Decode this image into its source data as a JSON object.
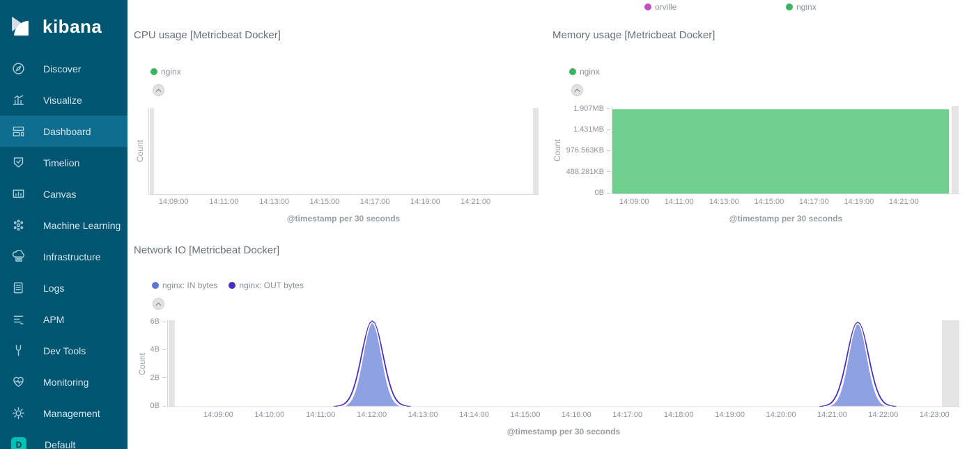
{
  "colors": {
    "sidebar_bg": "#005571",
    "sidebar_selected_bg": "#0c6d8e",
    "sidebar_text": "#d3e5ec",
    "sidebar_icon": "#a9cfdd",
    "accent_teal": "#00bfb3",
    "panel_title": "#6a717d",
    "legend_text": "#8b9099",
    "axis_text": "#8e939b",
    "axis_line": "#d8dbde",
    "partial_bucket": "#e4e4e4",
    "series_green": "#3ab45e",
    "series_green_fill": "#71cf8e",
    "series_in_blue": "#5b74d6",
    "series_out_purple": "#4a2dc1",
    "series_orville": "#c44fc4"
  },
  "sidebar": {
    "logo_text": "kibana",
    "items": [
      {
        "label": "Discover",
        "icon": "discover-icon",
        "selected": false
      },
      {
        "label": "Visualize",
        "icon": "visualize-icon",
        "selected": false
      },
      {
        "label": "Dashboard",
        "icon": "dashboard-icon",
        "selected": true
      },
      {
        "label": "Timelion",
        "icon": "timelion-icon",
        "selected": false
      },
      {
        "label": "Canvas",
        "icon": "canvas-icon",
        "selected": false
      },
      {
        "label": "Machine Learning",
        "icon": "machine-learning-icon",
        "selected": false
      },
      {
        "label": "Infrastructure",
        "icon": "infrastructure-icon",
        "selected": false
      },
      {
        "label": "Logs",
        "icon": "logs-icon",
        "selected": false
      },
      {
        "label": "APM",
        "icon": "apm-icon",
        "selected": false
      },
      {
        "label": "Dev Tools",
        "icon": "dev-tools-icon",
        "selected": false
      },
      {
        "label": "Monitoring",
        "icon": "monitoring-icon",
        "selected": false
      },
      {
        "label": "Management",
        "icon": "management-icon",
        "selected": false
      },
      {
        "label": "Default",
        "icon": "default-space-badge",
        "selected": false,
        "badge": "D"
      }
    ]
  },
  "top_legend": {
    "items": [
      {
        "label": "orville",
        "color": "#c44fc4"
      },
      {
        "label": "nginx",
        "color": "#3ab45e"
      }
    ]
  },
  "chart_data": [
    {
      "id": "cpu",
      "type": "area",
      "title": "CPU usage [Metricbeat Docker]",
      "ylabel": "Count",
      "xlabel": "@timestamp per 30 seconds",
      "legend": [
        {
          "label": "nginx",
          "color": "#3ab45e"
        }
      ],
      "x_range": [
        "14:08:00",
        "14:23:30"
      ],
      "x_ticks": [
        "14:09:00",
        "14:11:00",
        "14:13:00",
        "14:15:00",
        "14:17:00",
        "14:19:00",
        "14:21:00"
      ],
      "y_ticks": [],
      "ylim": [
        0,
        1
      ],
      "series": [
        {
          "name": "nginx",
          "color": "#3ab45e",
          "values": []
        }
      ],
      "note": "no data rendered in visible range"
    },
    {
      "id": "memory",
      "type": "area",
      "title": "Memory usage [Metricbeat Docker]",
      "ylabel": "Count",
      "xlabel": "@timestamp per 30 seconds",
      "legend": [
        {
          "label": "nginx",
          "color": "#3ab45e"
        }
      ],
      "x_range": [
        "14:08:00",
        "14:23:30"
      ],
      "x_ticks": [
        "14:09:00",
        "14:11:00",
        "14:13:00",
        "14:15:00",
        "14:17:00",
        "14:19:00",
        "14:21:00"
      ],
      "ylim_bytes": [
        0,
        2080000
      ],
      "y_ticks": [
        {
          "label": "1.907MB",
          "bytes": 2000000
        },
        {
          "label": "1.431MB",
          "bytes": 1500000
        },
        {
          "label": "976.563KB",
          "bytes": 1000000
        },
        {
          "label": "488.281KB",
          "bytes": 500000
        },
        {
          "label": "0B",
          "bytes": 0
        }
      ],
      "series": [
        {
          "name": "nginx",
          "color": "#71cf8e",
          "constant_bytes": 2000000
        }
      ]
    },
    {
      "id": "network",
      "type": "area",
      "title": "Network IO [Metricbeat Docker]",
      "ylabel": "Count",
      "xlabel": "@timestamp per 30 seconds",
      "legend": [
        {
          "label": "nginx: IN bytes",
          "color": "#5b74d6"
        },
        {
          "label": "nginx: OUT bytes",
          "color": "#4a2dc1"
        }
      ],
      "x_range": [
        "14:08:00",
        "14:23:30"
      ],
      "x_ticks": [
        "14:09:00",
        "14:10:00",
        "14:11:00",
        "14:12:00",
        "14:13:00",
        "14:14:00",
        "14:15:00",
        "14:16:00",
        "14:17:00",
        "14:18:00",
        "14:19:00",
        "14:20:00",
        "14:21:00",
        "14:22:00",
        "14:23:00"
      ],
      "ylim": [
        0,
        6.15
      ],
      "y_ticks": [
        {
          "label": "6B",
          "value": 6
        },
        {
          "label": "4B",
          "value": 4
        },
        {
          "label": "2B",
          "value": 2
        },
        {
          "label": "0B",
          "value": 0
        }
      ],
      "series": [
        {
          "name": "nginx: OUT bytes",
          "color": "#4a2dc1",
          "style": "line",
          "peaks": [
            {
              "center": "14:12:00",
              "peak_bytes": 6.08,
              "sigma_seconds": 12.5
            },
            {
              "center": "14:21:30",
              "peak_bytes": 6.0,
              "sigma_seconds": 12.5
            }
          ]
        },
        {
          "name": "nginx: IN bytes",
          "color": "#5b74d6",
          "fill": "rgba(91,116,214,0.68)",
          "style": "area",
          "peaks": [
            {
              "center": "14:12:00",
              "peak_bytes": 6.0,
              "sigma_seconds": 11
            },
            {
              "center": "14:21:30",
              "peak_bytes": 5.92,
              "sigma_seconds": 11
            }
          ]
        }
      ]
    }
  ]
}
